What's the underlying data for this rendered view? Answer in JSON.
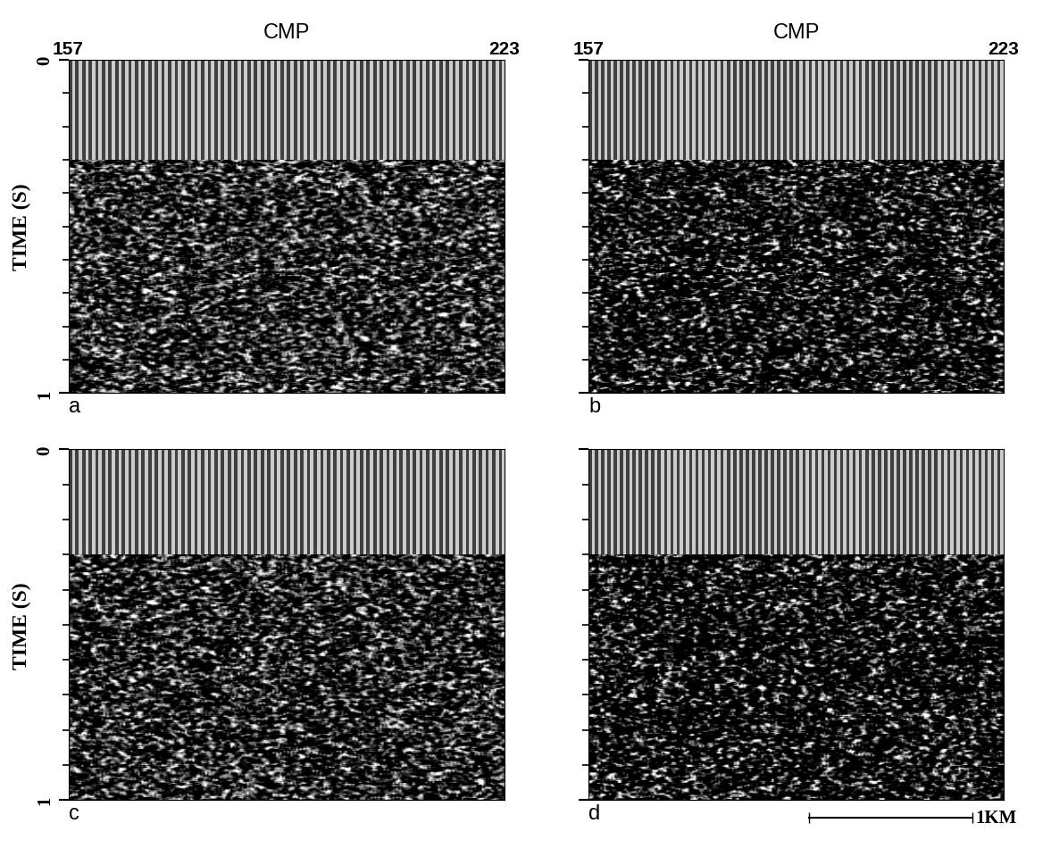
{
  "chart_data": [
    {
      "type": "image",
      "panel_label": "a",
      "x_label": "CMP",
      "y_label": "TIME (S)",
      "xlim": [
        157,
        223
      ],
      "xticks": [
        157,
        223
      ],
      "ylim": [
        1,
        0
      ],
      "yticks": [
        0,
        1
      ],
      "minor_yticks": [
        0.1,
        0.2,
        0.3,
        0.4,
        0.5,
        0.6,
        0.7,
        0.8,
        0.9
      ],
      "mute_time": 0.3
    },
    {
      "type": "image",
      "panel_label": "b",
      "x_label": "CMP",
      "xlim": [
        157,
        223
      ],
      "xticks": [
        157,
        223
      ],
      "ylim": [
        1,
        0
      ],
      "yticks": [
        0,
        1
      ],
      "minor_yticks": [
        0.1,
        0.2,
        0.3,
        0.4,
        0.5,
        0.6,
        0.7,
        0.8,
        0.9
      ],
      "mute_time": 0.3,
      "tick_labels": "x"
    },
    {
      "type": "image",
      "panel_label": "c",
      "y_label": "TIME (S)",
      "xlim": [
        157,
        223
      ],
      "ylim": [
        1,
        0
      ],
      "yticks": [
        0,
        1
      ],
      "minor_yticks": [
        0.1,
        0.2,
        0.3,
        0.4,
        0.5,
        0.6,
        0.7,
        0.8,
        0.9
      ],
      "mute_time": 0.3,
      "tick_labels": "y"
    },
    {
      "type": "image",
      "panel_label": "d",
      "xlim": [
        157,
        223
      ],
      "ylim": [
        1,
        0
      ],
      "yticks": [
        0,
        1
      ],
      "minor_yticks": [
        0.1,
        0.2,
        0.3,
        0.4,
        0.5,
        0.6,
        0.7,
        0.8,
        0.9
      ],
      "mute_time": 0.3,
      "tick_labels": false,
      "scale_bar": {
        "label": "1KM",
        "length": 26
      }
    }
  ]
}
